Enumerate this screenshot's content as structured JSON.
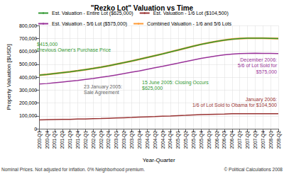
{
  "chart_data": {
    "type": "line",
    "title": "\"Rezko Lot\" Valuation vs Time",
    "xlabel": "Year-Quarter",
    "ylabel": "Property Valuation [$USD]",
    "categories": [
      "2000-Q3",
      "2000-Q4",
      "2001-Q1",
      "2001-Q2",
      "2001-Q3",
      "2001-Q4",
      "2002-Q1",
      "2002-Q2",
      "2002-Q3",
      "2002-Q4",
      "2003-Q1",
      "2003-Q2",
      "2003-Q3",
      "2003-Q4",
      "2004-Q1",
      "2004-Q2",
      "2004-Q3",
      "2004-Q4",
      "2005-Q1",
      "2005-Q2",
      "2005-Q3",
      "2005-Q4",
      "2006-Q1",
      "2006-Q2",
      "2006-Q3",
      "2006-Q4",
      "2007-Q1",
      "2007-Q2",
      "2007-Q3",
      "2007-Q4",
      "2008-Q1",
      "2008-Q2"
    ],
    "series": [
      {
        "name": "Est. Valuation - Entire Lot ($625,000)",
        "color": "#339933",
        "values": [
          415000,
          420000,
          427000,
          434000,
          441000,
          449000,
          458000,
          467000,
          477000,
          488000,
          500000,
          512000,
          525000,
          538000,
          552000,
          566000,
          580000,
          595000,
          610000,
          625000,
          640000,
          654000,
          666000,
          677000,
          686000,
          693000,
          698000,
          701000,
          702000,
          701000,
          700000,
          698000
        ]
      },
      {
        "name": "Est. Valuation - 1/6 Lot ($104,500)",
        "color": "#993333",
        "values": [
          69000,
          70000,
          71000,
          72000,
          73000,
          75000,
          76000,
          78000,
          79000,
          81000,
          83000,
          85000,
          87000,
          90000,
          92000,
          94000,
          97000,
          99000,
          102000,
          104000,
          107000,
          109000,
          111000,
          113000,
          114000,
          116000,
          116000,
          117000,
          117000,
          117000,
          117000,
          116000
        ]
      },
      {
        "name": "Est. Valuation - 5/6 Lot ($575,000)",
        "color": "#993399",
        "values": [
          346000,
          350000,
          356000,
          362000,
          368000,
          374000,
          382000,
          389000,
          398000,
          407000,
          417000,
          427000,
          438000,
          448000,
          460000,
          472000,
          483000,
          496000,
          508000,
          521000,
          533000,
          545000,
          555000,
          564000,
          572000,
          578000,
          582000,
          584000,
          585000,
          584000,
          583000,
          582000
        ]
      },
      {
        "name": "Combined Valuation - 1/6 and 5/6 Lots",
        "color": "#ff9933",
        "values": [
          415000,
          420000,
          427000,
          434000,
          441000,
          449000,
          458000,
          467000,
          477000,
          488000,
          500000,
          512000,
          525000,
          538000,
          552000,
          566000,
          580000,
          595000,
          610000,
          625000,
          640000,
          654000,
          666000,
          677000,
          686000,
          694000,
          698000,
          701000,
          702000,
          701000,
          700000,
          698000
        ]
      }
    ],
    "ylim": [
      0,
      800000
    ],
    "yticks": [
      0,
      {
        "value": 100000,
        "label": "100,000"
      },
      {
        "value": 200000,
        "label": "200,000"
      },
      {
        "value": 300000,
        "label": "300,000"
      },
      {
        "value": 400000,
        "label": "400,000"
      },
      {
        "value": 500000,
        "label": "500,000"
      },
      {
        "value": 600000,
        "label": "600,000"
      },
      {
        "value": 700000,
        "label": "700,000"
      },
      {
        "value": 800000,
        "label": "800,000"
      }
    ],
    "grid": true,
    "legend": "top",
    "annotations": [
      {
        "text": "$415,000\nPrevious Owner's Purchase Price",
        "color": "#339933"
      },
      {
        "text": "15 June 2005: Closing Occurs\n$625,000",
        "color": "#339933"
      },
      {
        "text": "23 January 2005:\nSale Agreement",
        "color": "#666666"
      },
      {
        "text": "December 2006:\n5/6 of Lot Sold for\n$575,000",
        "color": "#993399"
      },
      {
        "text": "January 2006:\n1/6 of Lot Sold to Obama for $104,500",
        "color": "#993333"
      }
    ],
    "footnote": "Nominal Prices. Not adjusted for inflation. 0% Neighborhood premium.",
    "credit": "© Political Calculations 2008"
  }
}
